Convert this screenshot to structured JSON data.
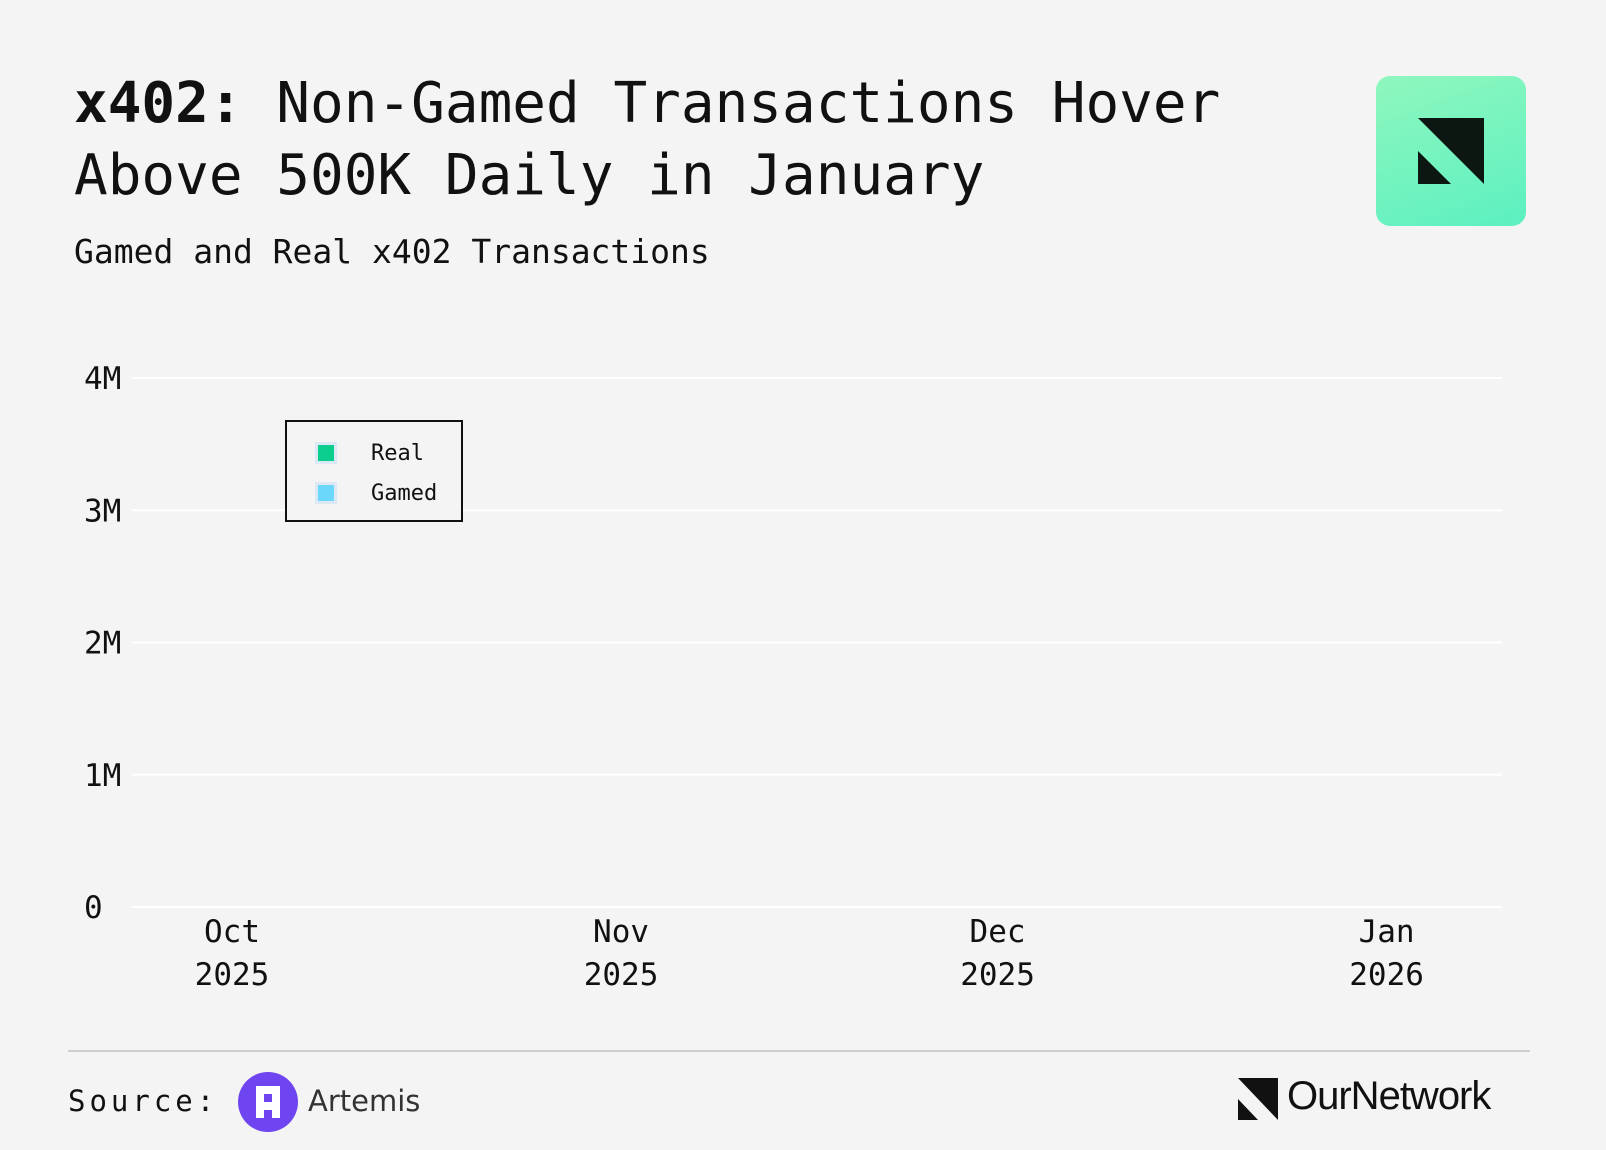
{
  "header": {
    "title_bold": "x402:",
    "title_rest": " Non-Gamed Transactions Hover Above 500K Daily in January",
    "subtitle": "Gamed and Real x402 Transactions"
  },
  "footer": {
    "source_label": "Source:",
    "source_name": "Artemis",
    "brand_name": "OurNetwork"
  },
  "colors": {
    "real": "#0cce8f",
    "gamed": "#6bd8fb",
    "grid": "#ffffff",
    "background": "#f4f4f4",
    "brand_tile": "#7ff5c4",
    "artemis": "#6f45f2"
  },
  "icons": [
    "ournetwork-brand-icon",
    "artemis-logo-icon",
    "ournetwork-logo-icon"
  ],
  "chart_data": {
    "type": "bar",
    "stacked": true,
    "title": "Gamed and Real x402 Transactions",
    "y_ticks": [
      {
        "value": 0,
        "label": "0"
      },
      {
        "value": 1000000,
        "label": "1M"
      },
      {
        "value": 2000000,
        "label": "2M"
      },
      {
        "value": 3000000,
        "label": "3M"
      },
      {
        "value": 4000000,
        "label": "4M"
      }
    ],
    "ylim": [
      0,
      4000000
    ],
    "x_start": "2025-09-25",
    "x_ticks": [
      {
        "date": "2025-10-01",
        "month": "Oct",
        "year": "2025"
      },
      {
        "date": "2025-11-01",
        "month": "Nov",
        "year": "2025"
      },
      {
        "date": "2025-12-01",
        "month": "Dec",
        "year": "2025"
      },
      {
        "date": "2026-01-01",
        "month": "Jan",
        "year": "2026"
      }
    ],
    "grid": "horizontal",
    "legend": {
      "placement": "top-left",
      "entries": [
        "Real",
        "Gamed"
      ]
    },
    "series": [
      {
        "name": "Gamed",
        "values": [
          0,
          0,
          0,
          0,
          0,
          0,
          0,
          0,
          0,
          0,
          0,
          0,
          0,
          0,
          0,
          0,
          0,
          0,
          0,
          0,
          0,
          0,
          0,
          0,
          0,
          0,
          0,
          0,
          0,
          0,
          0,
          0,
          0,
          0,
          0,
          0,
          0,
          0,
          0,
          0,
          0,
          0,
          0,
          0,
          0,
          0,
          0,
          0,
          0,
          0,
          0,
          0,
          0,
          0,
          0,
          0,
          0,
          0,
          0,
          0,
          0,
          0,
          0,
          0,
          0,
          0,
          0,
          0,
          0,
          0,
          0,
          0,
          0,
          0,
          0,
          0,
          0,
          0,
          0,
          0,
          0,
          0,
          0,
          0,
          0,
          0,
          0,
          0,
          0,
          0,
          0,
          0,
          0,
          0,
          0,
          0,
          0,
          0,
          0,
          0,
          0,
          0,
          0,
          0,
          0,
          0,
          0,
          0,
          0,
          0,
          0,
          0,
          0,
          0,
          0,
          0,
          0,
          0
        ]
      },
      {
        "name": "Real",
        "values": [
          0,
          0,
          0,
          0,
          0,
          0,
          0,
          0,
          0,
          0,
          0,
          0,
          0,
          0,
          0,
          0,
          0,
          0,
          0,
          0,
          0,
          0,
          0,
          0,
          0,
          0,
          0,
          0,
          0,
          0,
          0,
          0,
          0,
          0,
          0,
          0,
          0,
          0,
          0,
          0,
          0,
          0,
          0,
          0,
          0,
          0,
          0,
          0,
          0,
          0,
          0,
          0,
          0,
          0,
          0,
          0,
          0,
          0,
          0,
          0,
          0,
          0,
          0,
          0,
          0,
          0,
          0,
          0,
          0,
          0,
          0,
          0,
          0,
          0,
          0,
          0,
          0,
          0,
          0,
          0,
          0,
          0,
          0,
          0,
          0,
          0,
          0,
          0,
          0,
          0,
          0,
          0,
          0,
          0,
          0,
          0,
          0,
          0,
          0,
          0,
          0,
          0,
          0,
          0,
          0,
          0,
          0,
          0,
          0,
          0,
          0,
          0,
          0,
          0,
          0,
          0,
          0,
          0
        ]
      }
    ]
  }
}
